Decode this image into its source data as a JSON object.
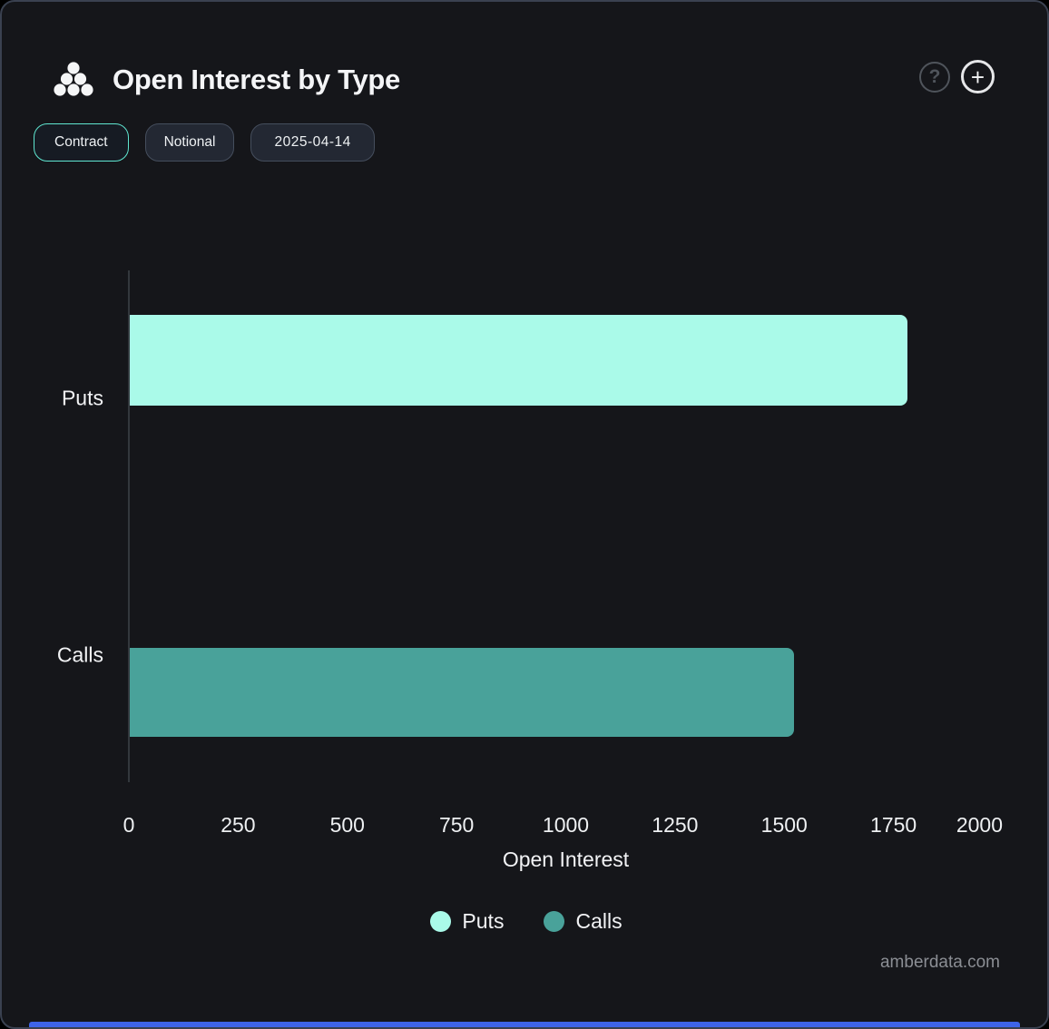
{
  "header": {
    "title": "Open Interest by Type",
    "help_label": "?",
    "add_label": "+"
  },
  "toolbar": {
    "buttons": [
      {
        "label": "Contract",
        "active": true
      },
      {
        "label": "Notional",
        "active": false
      },
      {
        "label": "2025-04-14",
        "active": false
      }
    ]
  },
  "chart_data": {
    "type": "bar",
    "orientation": "horizontal",
    "title": "Open Interest by Type",
    "categories": [
      "Puts",
      "Calls"
    ],
    "series": [
      {
        "name": "Puts",
        "value": 1780,
        "color": "#aafae9"
      },
      {
        "name": "Calls",
        "value": 1520,
        "color": "#49a29a"
      }
    ],
    "xlabel": "Open Interest",
    "xlim": [
      0,
      2000
    ],
    "xticks": [
      "0",
      "250",
      "500",
      "750",
      "1000",
      "1250",
      "1500",
      "1750",
      "2000"
    ],
    "grid": false,
    "legend": [
      {
        "label": "Puts",
        "color": "#aafae9"
      },
      {
        "label": "Calls",
        "color": "#49a29a"
      }
    ],
    "legend_position": "bottom-center"
  },
  "watermark": "amberdata.com",
  "colors": {
    "background": "#15161a",
    "card_border": "#3a4150",
    "accent_active": "#5fe6d0",
    "puts": "#aafae9",
    "calls": "#49a29a",
    "axis_line": "#33383d",
    "text": "#f2f3f5",
    "muted_text": "#8b8e94",
    "bottom_bar": "#3e64e8"
  }
}
